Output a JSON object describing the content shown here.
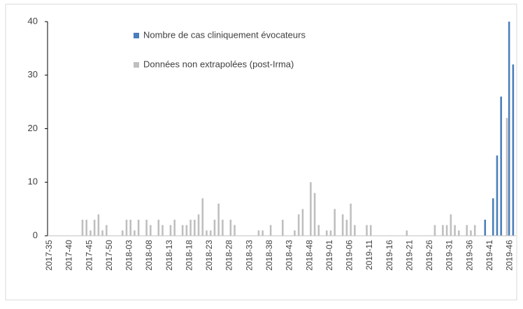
{
  "chart_data": {
    "type": "bar",
    "categories": [
      "2017-35",
      null,
      null,
      null,
      null,
      "2017-40",
      null,
      null,
      null,
      null,
      "2017-45",
      null,
      null,
      null,
      null,
      "2017-50",
      null,
      null,
      null,
      null,
      "2018-03",
      null,
      null,
      null,
      null,
      "2018-08",
      null,
      null,
      null,
      null,
      "2018-13",
      null,
      null,
      null,
      null,
      "2018-18",
      null,
      null,
      null,
      null,
      "2018-23",
      null,
      null,
      null,
      null,
      "2018-28",
      null,
      null,
      null,
      null,
      "2018-33",
      null,
      null,
      null,
      null,
      "2018-38",
      null,
      null,
      null,
      null,
      "2018-43",
      null,
      null,
      null,
      null,
      "2018-48",
      null,
      null,
      null,
      null,
      "2019-01",
      null,
      null,
      null,
      null,
      "2019-06",
      null,
      null,
      null,
      null,
      "2019-11",
      null,
      null,
      null,
      null,
      "2019-16",
      null,
      null,
      null,
      null,
      "2019-21",
      null,
      null,
      null,
      null,
      "2019-26",
      null,
      null,
      null,
      null,
      "2019-31",
      null,
      null,
      null,
      null,
      "2019-36",
      null,
      null,
      null,
      null,
      "2019-41",
      null,
      null,
      null,
      null,
      "2019-46",
      null
    ],
    "series": [
      {
        "name": "Nombre de cas cliniquement évocateurs",
        "color": "#4a7ebb",
        "values": [
          0,
          0,
          0,
          0,
          0,
          0,
          0,
          0,
          0,
          0,
          0,
          0,
          0,
          0,
          0,
          0,
          0,
          0,
          0,
          0,
          0,
          0,
          0,
          0,
          0,
          0,
          0,
          0,
          0,
          0,
          0,
          0,
          0,
          0,
          0,
          0,
          0,
          0,
          0,
          0,
          0,
          0,
          0,
          0,
          0,
          0,
          0,
          0,
          0,
          0,
          0,
          0,
          0,
          0,
          0,
          0,
          0,
          0,
          0,
          0,
          0,
          0,
          0,
          0,
          0,
          0,
          0,
          0,
          0,
          0,
          0,
          0,
          0,
          0,
          0,
          0,
          0,
          0,
          0,
          0,
          0,
          0,
          0,
          0,
          0,
          0,
          0,
          0,
          0,
          0,
          0,
          0,
          0,
          0,
          0,
          0,
          0,
          0,
          0,
          0,
          0,
          0,
          0,
          0,
          0,
          0,
          0,
          0,
          0,
          3,
          0,
          7,
          15,
          26,
          0,
          40,
          32
        ]
      },
      {
        "name": "Données non extrapolées (post-Irma)",
        "color": "#bfbfbf",
        "values": [
          0,
          0,
          0,
          0,
          0,
          0,
          0,
          0,
          3,
          3,
          1,
          3,
          4,
          1,
          2,
          0,
          0,
          0,
          1,
          3,
          3,
          1,
          3,
          0,
          3,
          2,
          0,
          3,
          2,
          0,
          2,
          3,
          0,
          2,
          2,
          3,
          3,
          4,
          7,
          1,
          1,
          3,
          6,
          3,
          0,
          3,
          2,
          0,
          0,
          0,
          0,
          0,
          1,
          1,
          0,
          2,
          0,
          0,
          3,
          0,
          0,
          1,
          4,
          5,
          0,
          10,
          8,
          2,
          0,
          1,
          1,
          5,
          0,
          4,
          3,
          6,
          2,
          0,
          0,
          2,
          2,
          0,
          0,
          0,
          0,
          0,
          0,
          0,
          0,
          1,
          0,
          0,
          0,
          0,
          0,
          0,
          2,
          0,
          2,
          2,
          4,
          2,
          1,
          0,
          2,
          1,
          2,
          0,
          0,
          0,
          0,
          0,
          0,
          0,
          22,
          0,
          0
        ]
      }
    ],
    "ylim": [
      0,
      40
    ],
    "yticks": [
      0,
      10,
      20,
      30,
      40
    ],
    "grid": false,
    "legend": "top"
  }
}
